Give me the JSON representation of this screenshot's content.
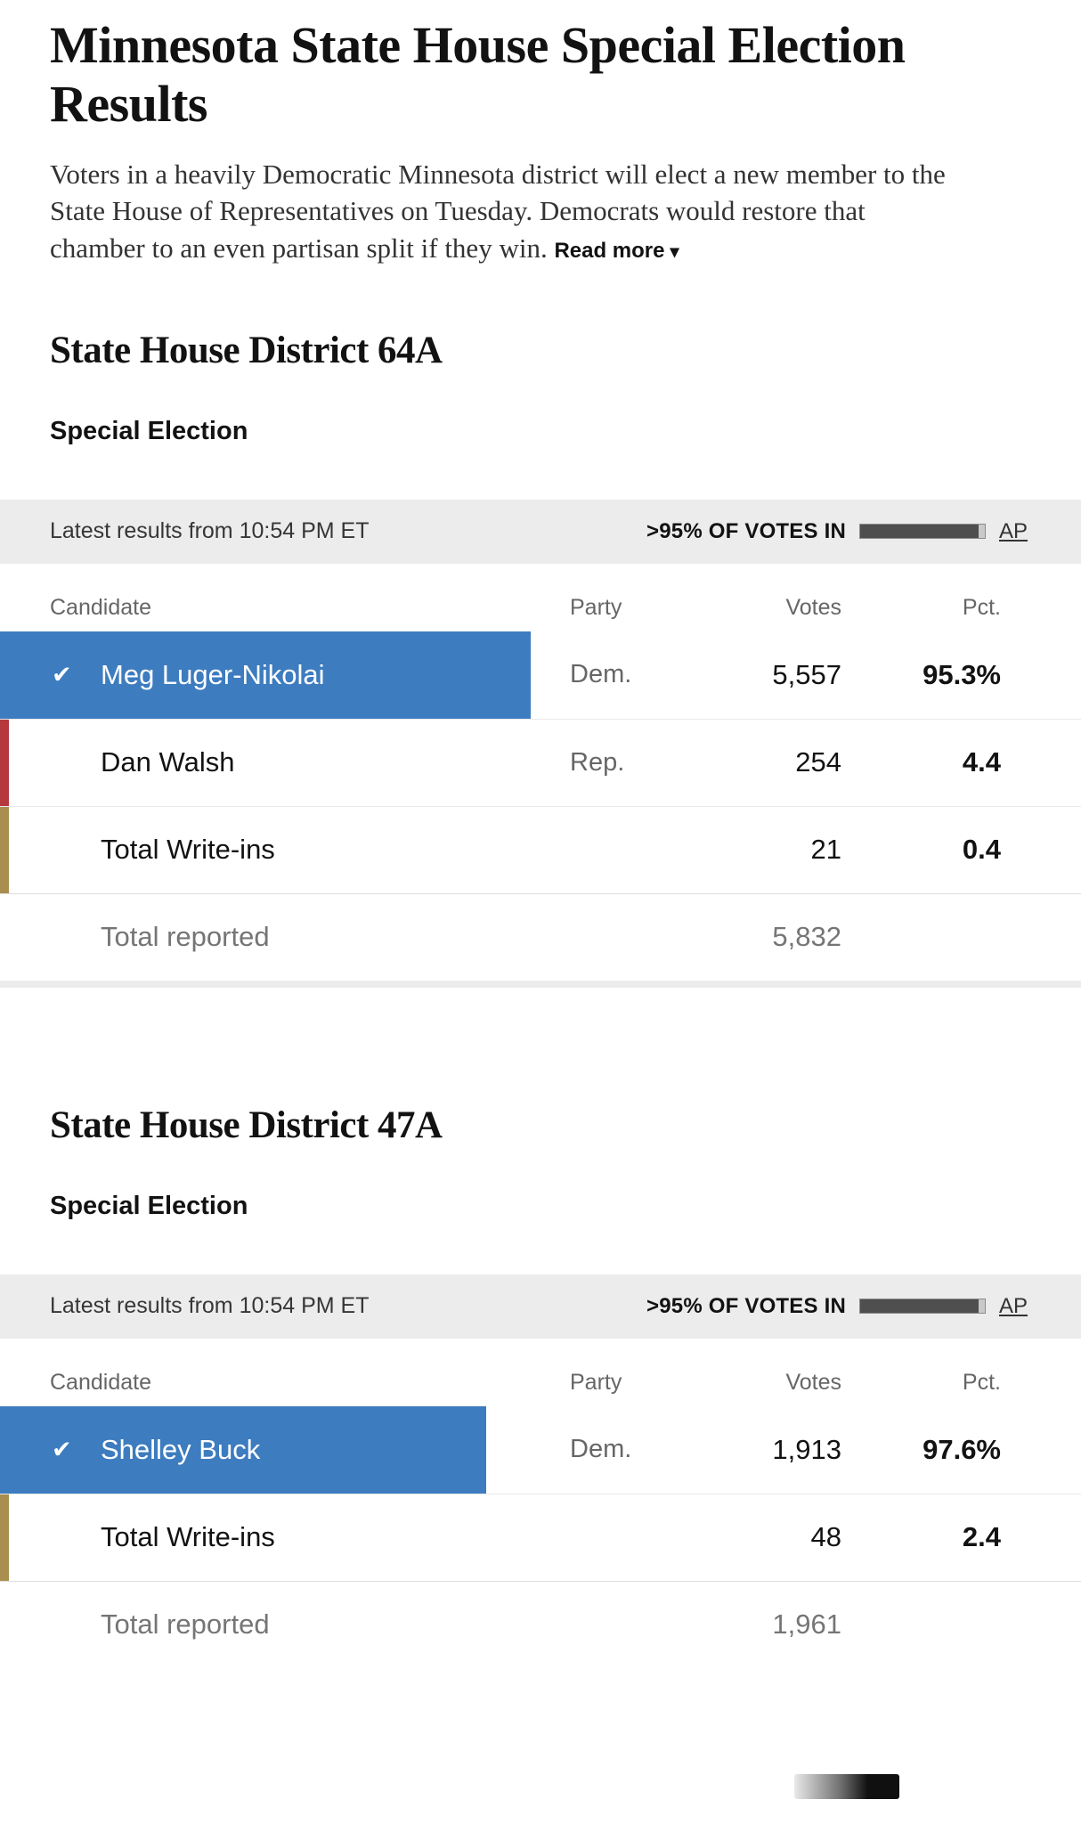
{
  "page": {
    "title": "Minnesota State House Special Election Results",
    "intro": "Voters in a heavily Democratic Minnesota district will elect a new member to the State House of Representatives on Tuesday. Democrats would restore that chamber to an even partisan split if they win.",
    "read_more_label": "Read more"
  },
  "colors": {
    "dem_blue": "#3d7cbf",
    "rep_red": "#b5383d",
    "writein_tan": "#a98e4f",
    "status_bar_bg": "#ececec",
    "progress_fill": "#4f4f4f"
  },
  "sections": [
    {
      "heading": "State House District 64A",
      "subheading": "Special Election",
      "status": {
        "latest": "Latest results from 10:54 PM ET",
        "votes_in": ">95% OF VOTES IN",
        "progress_pct": 95,
        "source": "AP"
      },
      "table": {
        "headers": [
          "Candidate",
          "Party",
          "Votes",
          "Pct."
        ],
        "rows": [
          {
            "candidate": "Meg Luger-Nikolai",
            "party": "Dem.",
            "votes": "5,557",
            "pct": "95.3%",
            "winner": true
          },
          {
            "candidate": "Dan Walsh",
            "party": "Rep.",
            "votes": "254",
            "pct": "4.4",
            "winner": false
          },
          {
            "candidate": "Total Write-ins",
            "party": "",
            "votes": "21",
            "pct": "0.4",
            "winner": false
          }
        ],
        "total_label": "Total reported",
        "total_votes": "5,832"
      }
    },
    {
      "heading": "State House District 47A",
      "subheading": "Special Election",
      "status": {
        "latest": "Latest results from 10:54 PM ET",
        "votes_in": ">95% OF VOTES IN",
        "progress_pct": 95,
        "source": "AP"
      },
      "table": {
        "headers": [
          "Candidate",
          "Party",
          "Votes",
          "Pct."
        ],
        "rows": [
          {
            "candidate": "Shelley Buck",
            "party": "Dem.",
            "votes": "1,913",
            "pct": "97.6%",
            "winner": true
          },
          {
            "candidate": "Total Write-ins",
            "party": "",
            "votes": "48",
            "pct": "2.4",
            "winner": false
          }
        ],
        "total_label": "Total reported",
        "total_votes": "1,961"
      }
    }
  ]
}
